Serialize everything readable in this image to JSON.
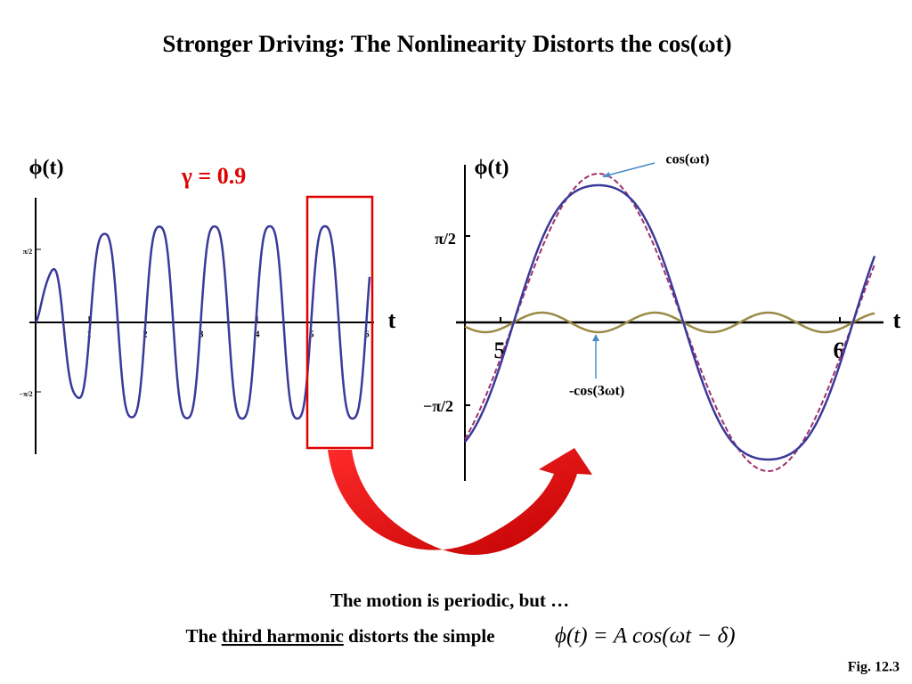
{
  "title": "Stronger Driving: The Nonlinearity Distorts the cos(ωt)",
  "left_plot": {
    "y_label": "ϕ(t)",
    "x_label": "t",
    "annotation": "γ = 0.9",
    "xticks": [
      "1",
      "2",
      "3",
      "4",
      "5",
      "6"
    ],
    "yticks": [
      "π/2",
      "−π/2"
    ]
  },
  "right_plot": {
    "y_label": "ϕ(t)",
    "x_label": "t",
    "xticks": [
      "5",
      "6"
    ],
    "yticks": [
      "π/2",
      "−π/2"
    ],
    "annotations": [
      "cos(ωt)",
      "-cos(3ωt)"
    ]
  },
  "caption": {
    "line1": "The motion is periodic, but …",
    "line2_prefix": "The ",
    "line2_underlined": "third harmonic",
    "line2_suffix": " distorts the simple ",
    "formula": "ϕ(t) = A cos(ωt − δ)"
  },
  "figure_label": "Fig. 12.3"
}
